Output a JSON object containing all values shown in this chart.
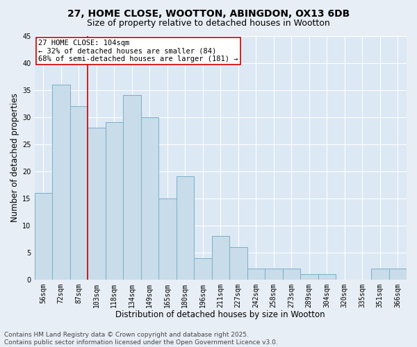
{
  "title1": "27, HOME CLOSE, WOOTTON, ABINGDON, OX13 6DB",
  "title2": "Size of property relative to detached houses in Wootton",
  "xlabel": "Distribution of detached houses by size in Wootton",
  "ylabel": "Number of detached properties",
  "categories": [
    "56sqm",
    "72sqm",
    "87sqm",
    "103sqm",
    "118sqm",
    "134sqm",
    "149sqm",
    "165sqm",
    "180sqm",
    "196sqm",
    "211sqm",
    "227sqm",
    "242sqm",
    "258sqm",
    "273sqm",
    "289sqm",
    "304sqm",
    "320sqm",
    "335sqm",
    "351sqm",
    "366sqm"
  ],
  "values": [
    16,
    36,
    32,
    28,
    29,
    34,
    30,
    15,
    19,
    4,
    8,
    6,
    2,
    2,
    2,
    1,
    1,
    0,
    0,
    2,
    2
  ],
  "bar_color": "#c9dcea",
  "bar_edge_color": "#7aafc8",
  "vline_color": "#cc0000",
  "vline_index": 3,
  "annotation_text": "27 HOME CLOSE: 104sqm\n← 32% of detached houses are smaller (84)\n68% of semi-detached houses are larger (181) →",
  "annotation_box_color": "#ffffff",
  "annotation_box_edge": "#cc0000",
  "ylim": [
    0,
    45
  ],
  "yticks": [
    0,
    5,
    10,
    15,
    20,
    25,
    30,
    35,
    40,
    45
  ],
  "footer": "Contains HM Land Registry data © Crown copyright and database right 2025.\nContains public sector information licensed under the Open Government Licence v3.0.",
  "bg_color": "#e8eef5",
  "plot_bg": "#dce8f4",
  "grid_color": "#ffffff",
  "title_fontsize": 10,
  "subtitle_fontsize": 9,
  "axis_label_fontsize": 8.5,
  "tick_fontsize": 7,
  "footer_fontsize": 6.5,
  "annot_fontsize": 7.5
}
